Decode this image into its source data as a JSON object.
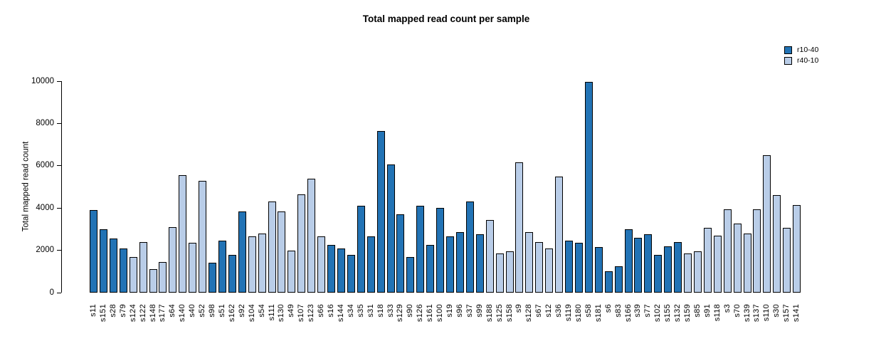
{
  "chart_data": {
    "type": "bar",
    "title": "Total mapped read count per sample",
    "ylabel": "Total mapped read count",
    "xlabel": "",
    "ylim": [
      0,
      10000
    ],
    "yticks": [
      0,
      2000,
      4000,
      6000,
      8000,
      10000
    ],
    "grid": false,
    "legend_position": "top-right",
    "background_color": "#ffffff",
    "bar_border_color": "#000000",
    "legend": [
      {
        "name": "r10-40",
        "color": "#2273b5"
      },
      {
        "name": "r40-10",
        "color": "#b9cde8"
      }
    ],
    "bars": [
      {
        "label": "s11",
        "value": 3900,
        "group": "r10-40"
      },
      {
        "label": "s151",
        "value": 3000,
        "group": "r10-40"
      },
      {
        "label": "s28",
        "value": 2550,
        "group": "r10-40"
      },
      {
        "label": "s79",
        "value": 2100,
        "group": "r10-40"
      },
      {
        "label": "s124",
        "value": 1700,
        "group": "r40-10"
      },
      {
        "label": "s122",
        "value": 2400,
        "group": "r40-10"
      },
      {
        "label": "s148",
        "value": 1100,
        "group": "r40-10"
      },
      {
        "label": "s177",
        "value": 1450,
        "group": "r40-10"
      },
      {
        "label": "s64",
        "value": 3100,
        "group": "r40-10"
      },
      {
        "label": "s140",
        "value": 5550,
        "group": "r40-10"
      },
      {
        "label": "s40",
        "value": 2350,
        "group": "r40-10"
      },
      {
        "label": "s52",
        "value": 5300,
        "group": "r40-10"
      },
      {
        "label": "s98",
        "value": 1400,
        "group": "r10-40"
      },
      {
        "label": "s51",
        "value": 2450,
        "group": "r10-40"
      },
      {
        "label": "s162",
        "value": 1800,
        "group": "r10-40"
      },
      {
        "label": "s92",
        "value": 3850,
        "group": "r10-40"
      },
      {
        "label": "s104",
        "value": 2650,
        "group": "r40-10"
      },
      {
        "label": "s54",
        "value": 2800,
        "group": "r40-10"
      },
      {
        "label": "s111",
        "value": 4300,
        "group": "r40-10"
      },
      {
        "label": "s130",
        "value": 3850,
        "group": "r40-10"
      },
      {
        "label": "s49",
        "value": 2000,
        "group": "r40-10"
      },
      {
        "label": "s107",
        "value": 4650,
        "group": "r40-10"
      },
      {
        "label": "s123",
        "value": 5400,
        "group": "r40-10"
      },
      {
        "label": "s66",
        "value": 2650,
        "group": "r40-10"
      },
      {
        "label": "s16",
        "value": 2250,
        "group": "r10-40"
      },
      {
        "label": "s144",
        "value": 2100,
        "group": "r10-40"
      },
      {
        "label": "s34",
        "value": 1800,
        "group": "r10-40"
      },
      {
        "label": "s35",
        "value": 4100,
        "group": "r10-40"
      },
      {
        "label": "s31",
        "value": 2650,
        "group": "r10-40"
      },
      {
        "label": "s18",
        "value": 7650,
        "group": "r10-40"
      },
      {
        "label": "s33",
        "value": 6050,
        "group": "r10-40"
      },
      {
        "label": "s129",
        "value": 3700,
        "group": "r10-40"
      },
      {
        "label": "s90",
        "value": 1700,
        "group": "r10-40"
      },
      {
        "label": "s126",
        "value": 4100,
        "group": "r10-40"
      },
      {
        "label": "s161",
        "value": 2250,
        "group": "r10-40"
      },
      {
        "label": "s100",
        "value": 4000,
        "group": "r10-40"
      },
      {
        "label": "s19",
        "value": 2650,
        "group": "r10-40"
      },
      {
        "label": "s96",
        "value": 2850,
        "group": "r10-40"
      },
      {
        "label": "s37",
        "value": 4300,
        "group": "r10-40"
      },
      {
        "label": "s99",
        "value": 2750,
        "group": "r10-40"
      },
      {
        "label": "s188",
        "value": 3450,
        "group": "r40-10"
      },
      {
        "label": "s125",
        "value": 1850,
        "group": "r40-10"
      },
      {
        "label": "s158",
        "value": 1950,
        "group": "r40-10"
      },
      {
        "label": "s9",
        "value": 6150,
        "group": "r40-10"
      },
      {
        "label": "s128",
        "value": 2850,
        "group": "r40-10"
      },
      {
        "label": "s67",
        "value": 2400,
        "group": "r40-10"
      },
      {
        "label": "s12",
        "value": 2100,
        "group": "r40-10"
      },
      {
        "label": "s36",
        "value": 5500,
        "group": "r40-10"
      },
      {
        "label": "s119",
        "value": 2450,
        "group": "r10-40"
      },
      {
        "label": "s180",
        "value": 2350,
        "group": "r10-40"
      },
      {
        "label": "s58",
        "value": 9950,
        "group": "r10-40"
      },
      {
        "label": "s181",
        "value": 2150,
        "group": "r10-40"
      },
      {
        "label": "s6",
        "value": 1000,
        "group": "r10-40"
      },
      {
        "label": "s83",
        "value": 1250,
        "group": "r10-40"
      },
      {
        "label": "s166",
        "value": 3000,
        "group": "r10-40"
      },
      {
        "label": "s39",
        "value": 2600,
        "group": "r10-40"
      },
      {
        "label": "s77",
        "value": 2750,
        "group": "r10-40"
      },
      {
        "label": "s102",
        "value": 1800,
        "group": "r10-40"
      },
      {
        "label": "s155",
        "value": 2200,
        "group": "r10-40"
      },
      {
        "label": "s132",
        "value": 2400,
        "group": "r10-40"
      },
      {
        "label": "s159",
        "value": 1850,
        "group": "r40-10"
      },
      {
        "label": "s85",
        "value": 1950,
        "group": "r40-10"
      },
      {
        "label": "s91",
        "value": 3050,
        "group": "r40-10"
      },
      {
        "label": "s118",
        "value": 2700,
        "group": "r40-10"
      },
      {
        "label": "s3",
        "value": 3950,
        "group": "r40-10"
      },
      {
        "label": "s70",
        "value": 3250,
        "group": "r40-10"
      },
      {
        "label": "s139",
        "value": 2800,
        "group": "r40-10"
      },
      {
        "label": "s137",
        "value": 3950,
        "group": "r40-10"
      },
      {
        "label": "s110",
        "value": 6500,
        "group": "r40-10"
      },
      {
        "label": "s30",
        "value": 4600,
        "group": "r40-10"
      },
      {
        "label": "s157",
        "value": 3050,
        "group": "r40-10"
      },
      {
        "label": "s141",
        "value": 4150,
        "group": "r40-10"
      }
    ]
  }
}
